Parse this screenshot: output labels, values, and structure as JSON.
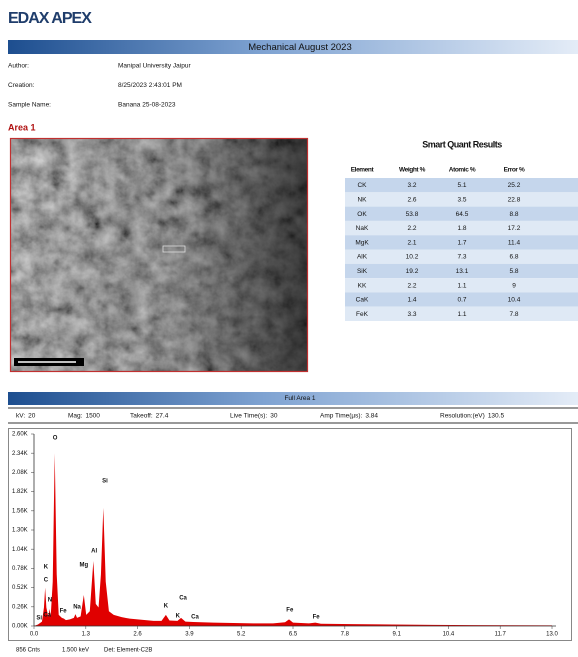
{
  "header": {
    "logo": "EDAX APEX",
    "title": "Mechanical August 2023"
  },
  "info": [
    {
      "label": "Author:",
      "value": "Manipal University Jaipur"
    },
    {
      "label": "Creation:",
      "value": "8/25/2023 2:43:01 PM"
    },
    {
      "label": "Sample Name:",
      "value": "Banana 25-08-2023"
    }
  ],
  "area_title": "Area 1",
  "results": {
    "title": "Smart Quant Results",
    "columns": [
      "Element",
      "Weight %",
      "Atomic %",
      "Error %"
    ],
    "rows": [
      [
        "CK",
        3.2,
        5.1,
        25.2
      ],
      [
        "NK",
        2.6,
        3.5,
        22.8
      ],
      [
        "OK",
        53.8,
        64.5,
        8.8
      ],
      [
        "NaK",
        2.2,
        1.8,
        17.2
      ],
      [
        "MgK",
        2.1,
        1.7,
        11.4
      ],
      [
        "AlK",
        10.2,
        7.3,
        6.8
      ],
      [
        "SiK",
        19.2,
        13.1,
        5.8
      ],
      [
        "KK",
        2.2,
        1.1,
        9
      ],
      [
        "CaK",
        1.4,
        0.7,
        10.4
      ],
      [
        "FeK",
        3.3,
        1.1,
        7.8
      ]
    ]
  },
  "spectrum": {
    "title": "Full Area 1",
    "params": [
      {
        "label": "kV:",
        "value": "20"
      },
      {
        "label": "Mag:",
        "value": "1500"
      },
      {
        "label": "Takeoff:",
        "value": "27.4"
      },
      {
        "label": "Live Time(s):",
        "value": "30"
      },
      {
        "label": "Amp Time(µs):",
        "value": "3.84"
      },
      {
        "label": "Resolution:(eV)",
        "value": "130.5"
      }
    ],
    "color": "#e00000",
    "xlim": [
      0,
      13.1
    ],
    "ylim": [
      0,
      2600
    ],
    "xticks": [
      {
        "value": 0,
        "label": "0.0"
      },
      1.3,
      2.6,
      3.9,
      5.2,
      6.5,
      7.8,
      9.1,
      10.4,
      11.7,
      {
        "value": 13,
        "label": "13.0"
      }
    ],
    "yticks": [
      {
        "value": 0,
        "label": "0.00K"
      },
      {
        "value": 260,
        "label": "0.26K"
      },
      {
        "value": 520,
        "label": "0.52K"
      },
      {
        "value": 780,
        "label": "0.78K"
      },
      {
        "value": 1040,
        "label": "1.04K"
      },
      {
        "value": 1300,
        "label": "1.30K"
      },
      {
        "value": 1560,
        "label": "1.56K"
      },
      {
        "value": 1820,
        "label": "1.82K"
      },
      {
        "value": 2080,
        "label": "2.08K"
      },
      {
        "value": 2340,
        "label": "2.34K"
      },
      {
        "value": 2600,
        "label": "2.60K"
      }
    ],
    "x": [
      0.0,
      0.1,
      0.2,
      0.25,
      0.28,
      0.31,
      0.36,
      0.39,
      0.42,
      0.47,
      0.52,
      0.57,
      0.62,
      0.7,
      0.75,
      0.8,
      0.9,
      1.0,
      1.04,
      1.08,
      1.17,
      1.25,
      1.31,
      1.4,
      1.49,
      1.55,
      1.62,
      1.68,
      1.74,
      1.8,
      1.88,
      2.0,
      2.2,
      2.4,
      2.6,
      2.8,
      3.0,
      3.2,
      3.31,
      3.4,
      3.6,
      3.69,
      3.8,
      4.0,
      4.5,
      5.0,
      5.5,
      6.0,
      6.3,
      6.4,
      6.5,
      6.9,
      7.06,
      7.2,
      8.0,
      9.0,
      10.0,
      11.0,
      12.0,
      13.0
    ],
    "y": [
      0,
      20,
      60,
      250,
      520,
      250,
      120,
      230,
      140,
      600,
      2340,
      700,
      150,
      110,
      100,
      80,
      90,
      110,
      160,
      110,
      130,
      420,
      150,
      200,
      880,
      300,
      250,
      700,
      1600,
      600,
      200,
      150,
      120,
      100,
      90,
      80,
      70,
      70,
      150,
      75,
      70,
      110,
      60,
      55,
      45,
      40,
      35,
      35,
      50,
      90,
      45,
      35,
      45,
      30,
      25,
      20,
      15,
      12,
      10,
      8
    ],
    "peak_labels": [
      {
        "label": "O",
        "x": 0.53,
        "y": 2546
      },
      {
        "label": "Si",
        "x": 1.78,
        "y": 1963
      },
      {
        "label": "Al",
        "x": 1.51,
        "y": 1016
      },
      {
        "label": "Mg",
        "x": 1.25,
        "y": 826
      },
      {
        "label": "K",
        "x": 0.3,
        "y": 799
      },
      {
        "label": "C",
        "x": 0.3,
        "y": 623
      },
      {
        "label": "N",
        "x": 0.4,
        "y": 352
      },
      {
        "label": "Fe",
        "x": 0.73,
        "y": 203
      },
      {
        "label": "Na",
        "x": 1.08,
        "y": 257
      },
      {
        "label": "Si",
        "x": 0.13,
        "y": 108
      },
      {
        "label": "Ca",
        "x": 0.33,
        "y": 149
      },
      {
        "label": "K",
        "x": 3.31,
        "y": 271
      },
      {
        "label": "Ca",
        "x": 3.74,
        "y": 379
      },
      {
        "label": "K",
        "x": 3.61,
        "y": 135
      },
      {
        "label": "Ca",
        "x": 4.04,
        "y": 122
      },
      {
        "label": "Fe",
        "x": 6.42,
        "y": 217
      },
      {
        "label": "Fe",
        "x": 7.08,
        "y": 122
      }
    ],
    "footer": [
      "856 Cnts",
      "1.500 keV",
      "Det: Element-C2B"
    ]
  }
}
